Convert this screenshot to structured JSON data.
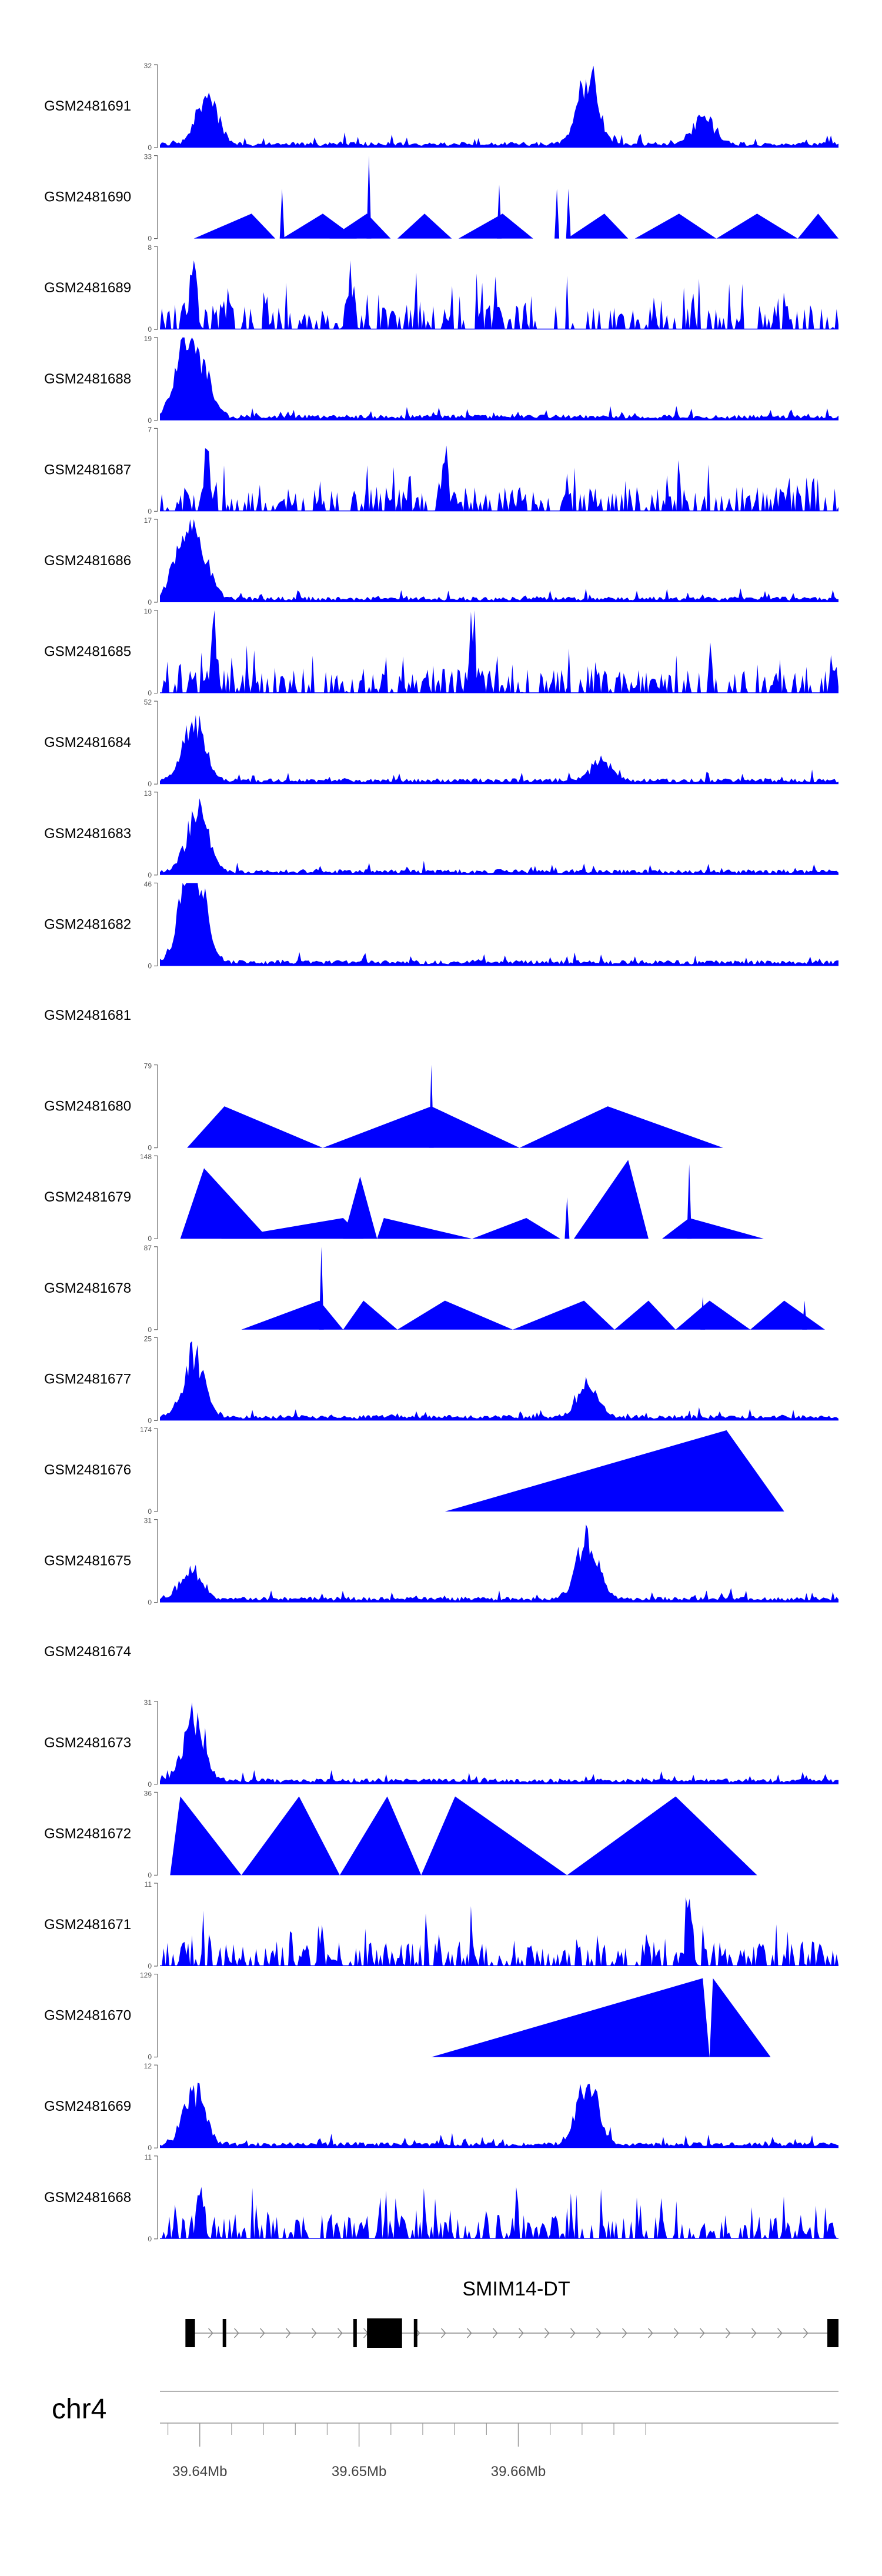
{
  "chart_data": {
    "type": "area",
    "title": "",
    "color": "#0000ff",
    "tracks": [
      {
        "name": "GSM2481691",
        "ymax": "32",
        "ymin": "0",
        "shape": "dense",
        "seed": 11,
        "peaks": [
          [
            0.07,
            0.75
          ],
          [
            0.63,
            1.0
          ],
          [
            0.8,
            0.4
          ]
        ]
      },
      {
        "name": "GSM2481690",
        "ymax": "33",
        "ymin": "0",
        "shape": "tri",
        "tris": [
          [
            0.05,
            0.135,
            0.17,
            0.3
          ],
          [
            0.18,
            0.24,
            0.29,
            0.3
          ],
          [
            0.25,
            0.305,
            0.34,
            0.3
          ],
          [
            0.35,
            0.39,
            0.43,
            0.3
          ],
          [
            0.44,
            0.505,
            0.55,
            0.3
          ],
          [
            0.6,
            0.655,
            0.69,
            0.3
          ],
          [
            0.7,
            0.765,
            0.82,
            0.3
          ],
          [
            0.82,
            0.88,
            0.94,
            0.3
          ],
          [
            0.94,
            0.97,
            1.0,
            0.3
          ]
        ],
        "spikes": [
          [
            0.18,
            0.6
          ],
          [
            0.308,
            1.0
          ],
          [
            0.5,
            0.65
          ],
          [
            0.585,
            0.6
          ],
          [
            0.602,
            0.6
          ]
        ]
      },
      {
        "name": "GSM2481689",
        "ymax": "8",
        "ymin": "0",
        "shape": "sparse",
        "seed": 23,
        "peaks": [
          [
            0.05,
            0.9
          ],
          [
            0.28,
            0.7
          ]
        ]
      },
      {
        "name": "GSM2481688",
        "ymax": "19",
        "ymin": "0",
        "shape": "dense",
        "seed": 37,
        "peaks": [
          [
            0.035,
            0.95
          ],
          [
            0.06,
            0.65
          ]
        ]
      },
      {
        "name": "GSM2481687",
        "ymax": "7",
        "ymin": "0",
        "shape": "sparse",
        "seed": 41,
        "peaks": [
          [
            0.07,
            0.95
          ],
          [
            0.42,
            0.8
          ]
        ]
      },
      {
        "name": "GSM2481686",
        "ymax": "17",
        "ymin": "0",
        "shape": "dense",
        "seed": 53,
        "peaks": [
          [
            0.035,
            0.95
          ],
          [
            0.06,
            0.6
          ]
        ]
      },
      {
        "name": "GSM2481685",
        "ymax": "10",
        "ymin": "0",
        "shape": "sparse",
        "seed": 67,
        "peaks": [
          [
            0.08,
            0.95
          ],
          [
            0.46,
            0.8
          ]
        ]
      },
      {
        "name": "GSM2481684",
        "ymax": "52",
        "ymin": "0",
        "shape": "dense",
        "seed": 71,
        "peaks": [
          [
            0.05,
            0.95
          ],
          [
            0.65,
            0.3
          ]
        ]
      },
      {
        "name": "GSM2481683",
        "ymax": "13",
        "ymin": "0",
        "shape": "dense",
        "seed": 83,
        "peaks": [
          [
            0.055,
            0.95
          ]
        ]
      },
      {
        "name": "GSM2481682",
        "ymax": "46",
        "ymin": "0",
        "shape": "dense",
        "seed": 97,
        "peaks": [
          [
            0.04,
            0.9
          ],
          [
            0.055,
            0.95
          ]
        ]
      },
      {
        "name": "GSM2481681",
        "ymax": "",
        "ymin": "",
        "shape": "empty"
      },
      {
        "name": "GSM2481680",
        "ymax": "79",
        "ymin": "0",
        "shape": "tri",
        "tris": [
          [
            0.04,
            0.095,
            0.24,
            0.5
          ],
          [
            0.24,
            0.4,
            0.53,
            0.5
          ],
          [
            0.53,
            0.66,
            0.83,
            0.5
          ]
        ],
        "spikes": [
          [
            0.4,
            1.0
          ]
        ]
      },
      {
        "name": "GSM2481679",
        "ymax": "148",
        "ymin": "0",
        "shape": "tri",
        "tris": [
          [
            0.03,
            0.065,
            0.16,
            0.85
          ],
          [
            0.09,
            0.27,
            0.3,
            0.25
          ],
          [
            0.27,
            0.295,
            0.32,
            0.75
          ],
          [
            0.32,
            0.33,
            0.46,
            0.25
          ],
          [
            0.46,
            0.54,
            0.59,
            0.25
          ],
          [
            0.61,
            0.69,
            0.72,
            0.95
          ],
          [
            0.74,
            0.78,
            0.89,
            0.25
          ]
        ],
        "spikes": [
          [
            0.6,
            0.5
          ],
          [
            0.78,
            0.9
          ]
        ]
      },
      {
        "name": "GSM2481678",
        "ymax": "87",
        "ymin": "0",
        "shape": "tri",
        "tris": [
          [
            0.12,
            0.235,
            0.27,
            0.35
          ],
          [
            0.27,
            0.3,
            0.35,
            0.35
          ],
          [
            0.35,
            0.42,
            0.52,
            0.35
          ],
          [
            0.52,
            0.625,
            0.67,
            0.35
          ],
          [
            0.67,
            0.72,
            0.76,
            0.35
          ],
          [
            0.76,
            0.81,
            0.87,
            0.35
          ],
          [
            0.87,
            0.92,
            0.98,
            0.35
          ]
        ],
        "spikes": [
          [
            0.238,
            1.0
          ],
          [
            0.8,
            0.4
          ],
          [
            0.95,
            0.35
          ]
        ]
      },
      {
        "name": "GSM2481677",
        "ymax": "25",
        "ymin": "0",
        "shape": "dense",
        "seed": 101,
        "peaks": [
          [
            0.05,
            0.95
          ],
          [
            0.63,
            0.45
          ]
        ]
      },
      {
        "name": "GSM2481676",
        "ymax": "174",
        "ymin": "0",
        "shape": "tri",
        "tris": [
          [
            0.42,
            0.835,
            0.92,
            0.98
          ]
        ],
        "spikes": []
      },
      {
        "name": "GSM2481675",
        "ymax": "31",
        "ymin": "0",
        "shape": "dense",
        "seed": 113,
        "peaks": [
          [
            0.045,
            0.45
          ],
          [
            0.63,
            0.95
          ]
        ]
      },
      {
        "name": "GSM2481674",
        "ymax": "",
        "ymin": "",
        "shape": "empty"
      },
      {
        "name": "GSM2481673",
        "ymax": "31",
        "ymin": "0",
        "shape": "dense",
        "seed": 127,
        "peaks": [
          [
            0.05,
            0.95
          ]
        ]
      },
      {
        "name": "GSM2481672",
        "ymax": "36",
        "ymin": "0",
        "shape": "tri",
        "tris": [
          [
            0.015,
            0.03,
            0.12,
            0.95
          ],
          [
            0.12,
            0.205,
            0.265,
            0.95
          ],
          [
            0.265,
            0.335,
            0.385,
            0.95
          ],
          [
            0.385,
            0.435,
            0.6,
            0.95
          ],
          [
            0.6,
            0.76,
            0.88,
            0.95
          ]
        ],
        "spikes": []
      },
      {
        "name": "GSM2481671",
        "ymax": "11",
        "ymin": "0",
        "shape": "sparse",
        "seed": 131,
        "peaks": [
          [
            0.78,
            0.95
          ]
        ]
      },
      {
        "name": "GSM2481670",
        "ymax": "129",
        "ymin": "0",
        "shape": "tri",
        "tris": [
          [
            0.4,
            0.8,
            0.81,
            0.95
          ],
          [
            0.81,
            0.815,
            0.9,
            0.95
          ]
        ],
        "spikes": []
      },
      {
        "name": "GSM2481669",
        "ymax": "12",
        "ymin": "0",
        "shape": "dense",
        "seed": 139,
        "peaks": [
          [
            0.05,
            0.85
          ],
          [
            0.63,
            0.95
          ]
        ]
      },
      {
        "name": "GSM2481668",
        "ymax": "11",
        "ymin": "0",
        "shape": "sparse",
        "seed": 149,
        "peaks": [
          [
            0.06,
            0.95
          ]
        ]
      }
    ],
    "gene": {
      "label": "SMIM14-DT",
      "exons": [
        [
          39.6391,
          39.6397
        ],
        [
          39.6415,
          39.6416
        ],
        [
          39.6497,
          39.6498
        ],
        [
          39.6505,
          39.6527
        ],
        [
          39.6535,
          39.6536
        ],
        [
          39.6794,
          39.6801
        ]
      ],
      "strand": "+"
    },
    "chromosome": "chr4",
    "x_range": [
      39.6375,
      39.6801
    ],
    "x_ticks": [
      39.64,
      39.65,
      39.66
    ],
    "x_tick_labels": [
      "39.64Mb",
      "39.65Mb",
      "39.66Mb"
    ],
    "x_minor_ticks": [
      39.638,
      39.642,
      39.644,
      39.646,
      39.648,
      39.652,
      39.654,
      39.656,
      39.658,
      39.662,
      39.664,
      39.666,
      39.668
    ]
  }
}
